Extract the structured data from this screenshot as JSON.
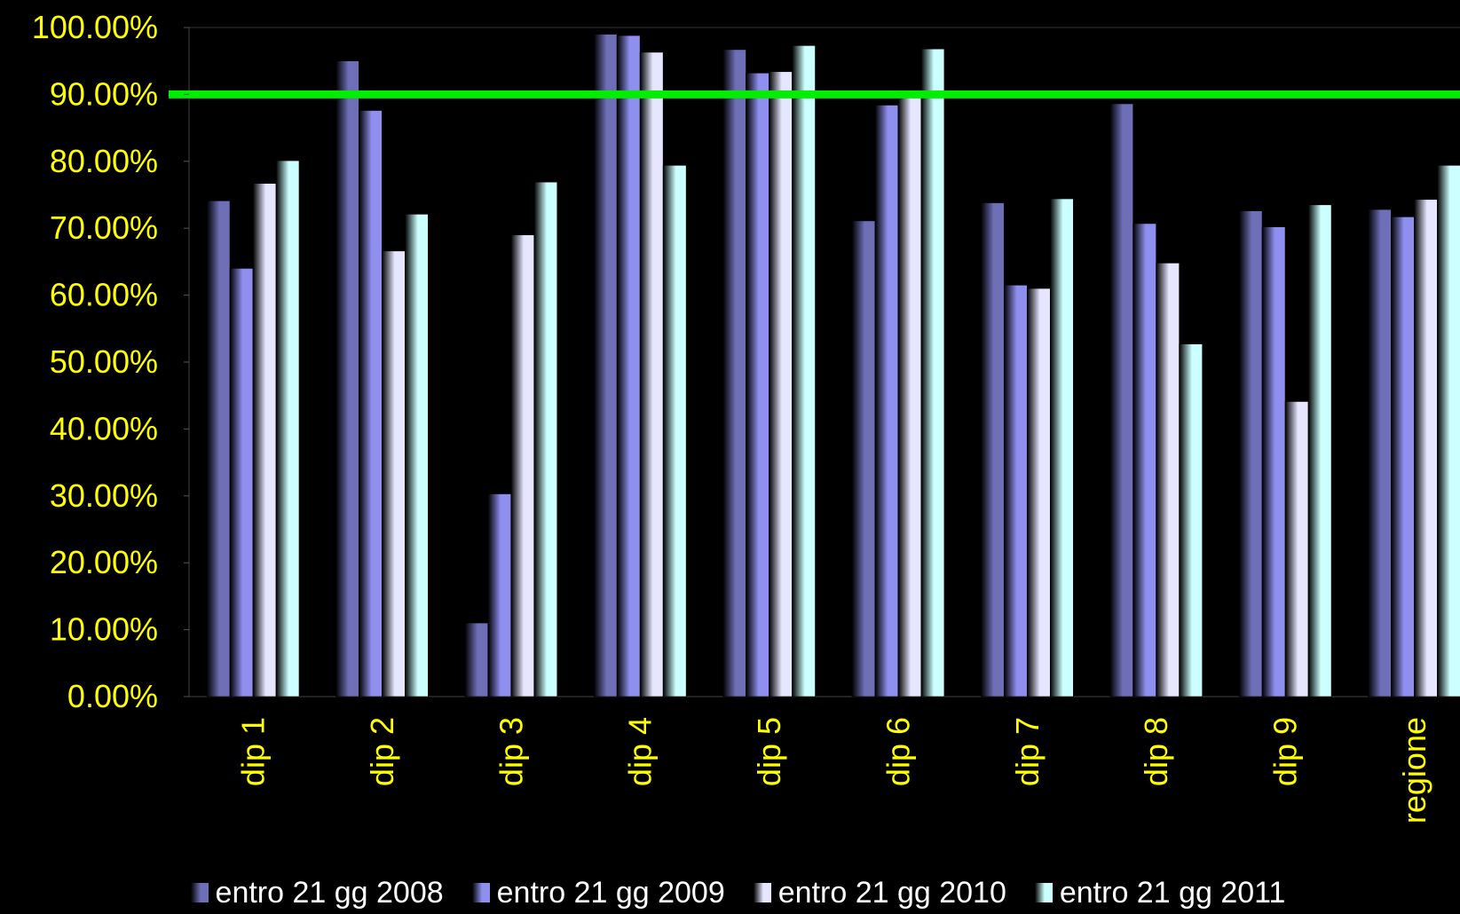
{
  "chart_data": {
    "type": "bar",
    "title": "",
    "xlabel": "",
    "ylabel": "",
    "categories": [
      "dip 1",
      "dip 2",
      "dip 3",
      "dip 4",
      "dip 5",
      "dip 6",
      "dip 7",
      "dip 8",
      "dip 9",
      "regione"
    ],
    "series": [
      {
        "name": "entro 21 gg 2008",
        "values": [
          0.741,
          0.95,
          0.11,
          0.99,
          0.967,
          0.711,
          0.738,
          0.886,
          0.726,
          0.728
        ],
        "color": "#6f6fb8"
      },
      {
        "name": "entro 21 gg 2009",
        "values": [
          0.64,
          0.876,
          0.303,
          0.988,
          0.932,
          0.884,
          0.615,
          0.707,
          0.702,
          0.717
        ],
        "color": "#8f8fef"
      },
      {
        "name": "entro 21 gg 2010",
        "values": [
          0.767,
          0.666,
          0.69,
          0.963,
          0.934,
          0.901,
          0.61,
          0.648,
          0.441,
          0.743
        ],
        "color": "#e6e6ff"
      },
      {
        "name": "entro 21 gg 2011",
        "values": [
          0.801,
          0.721,
          0.769,
          0.794,
          0.973,
          0.968,
          0.744,
          0.527,
          0.735,
          0.794
        ],
        "color": "#ccffff"
      }
    ],
    "ylim": [
      0,
      1
    ],
    "yticks": [
      "0.00%",
      "10.00%",
      "20.00%",
      "30.00%",
      "40.00%",
      "50.00%",
      "60.00%",
      "70.00%",
      "80.00%",
      "90.00%",
      "100.00%"
    ],
    "reference_line": {
      "value": 0.9,
      "color": "#00ee00"
    },
    "tick_label_color": "#ffff00",
    "background": "#000000",
    "grid": false,
    "legend_position": "bottom"
  }
}
